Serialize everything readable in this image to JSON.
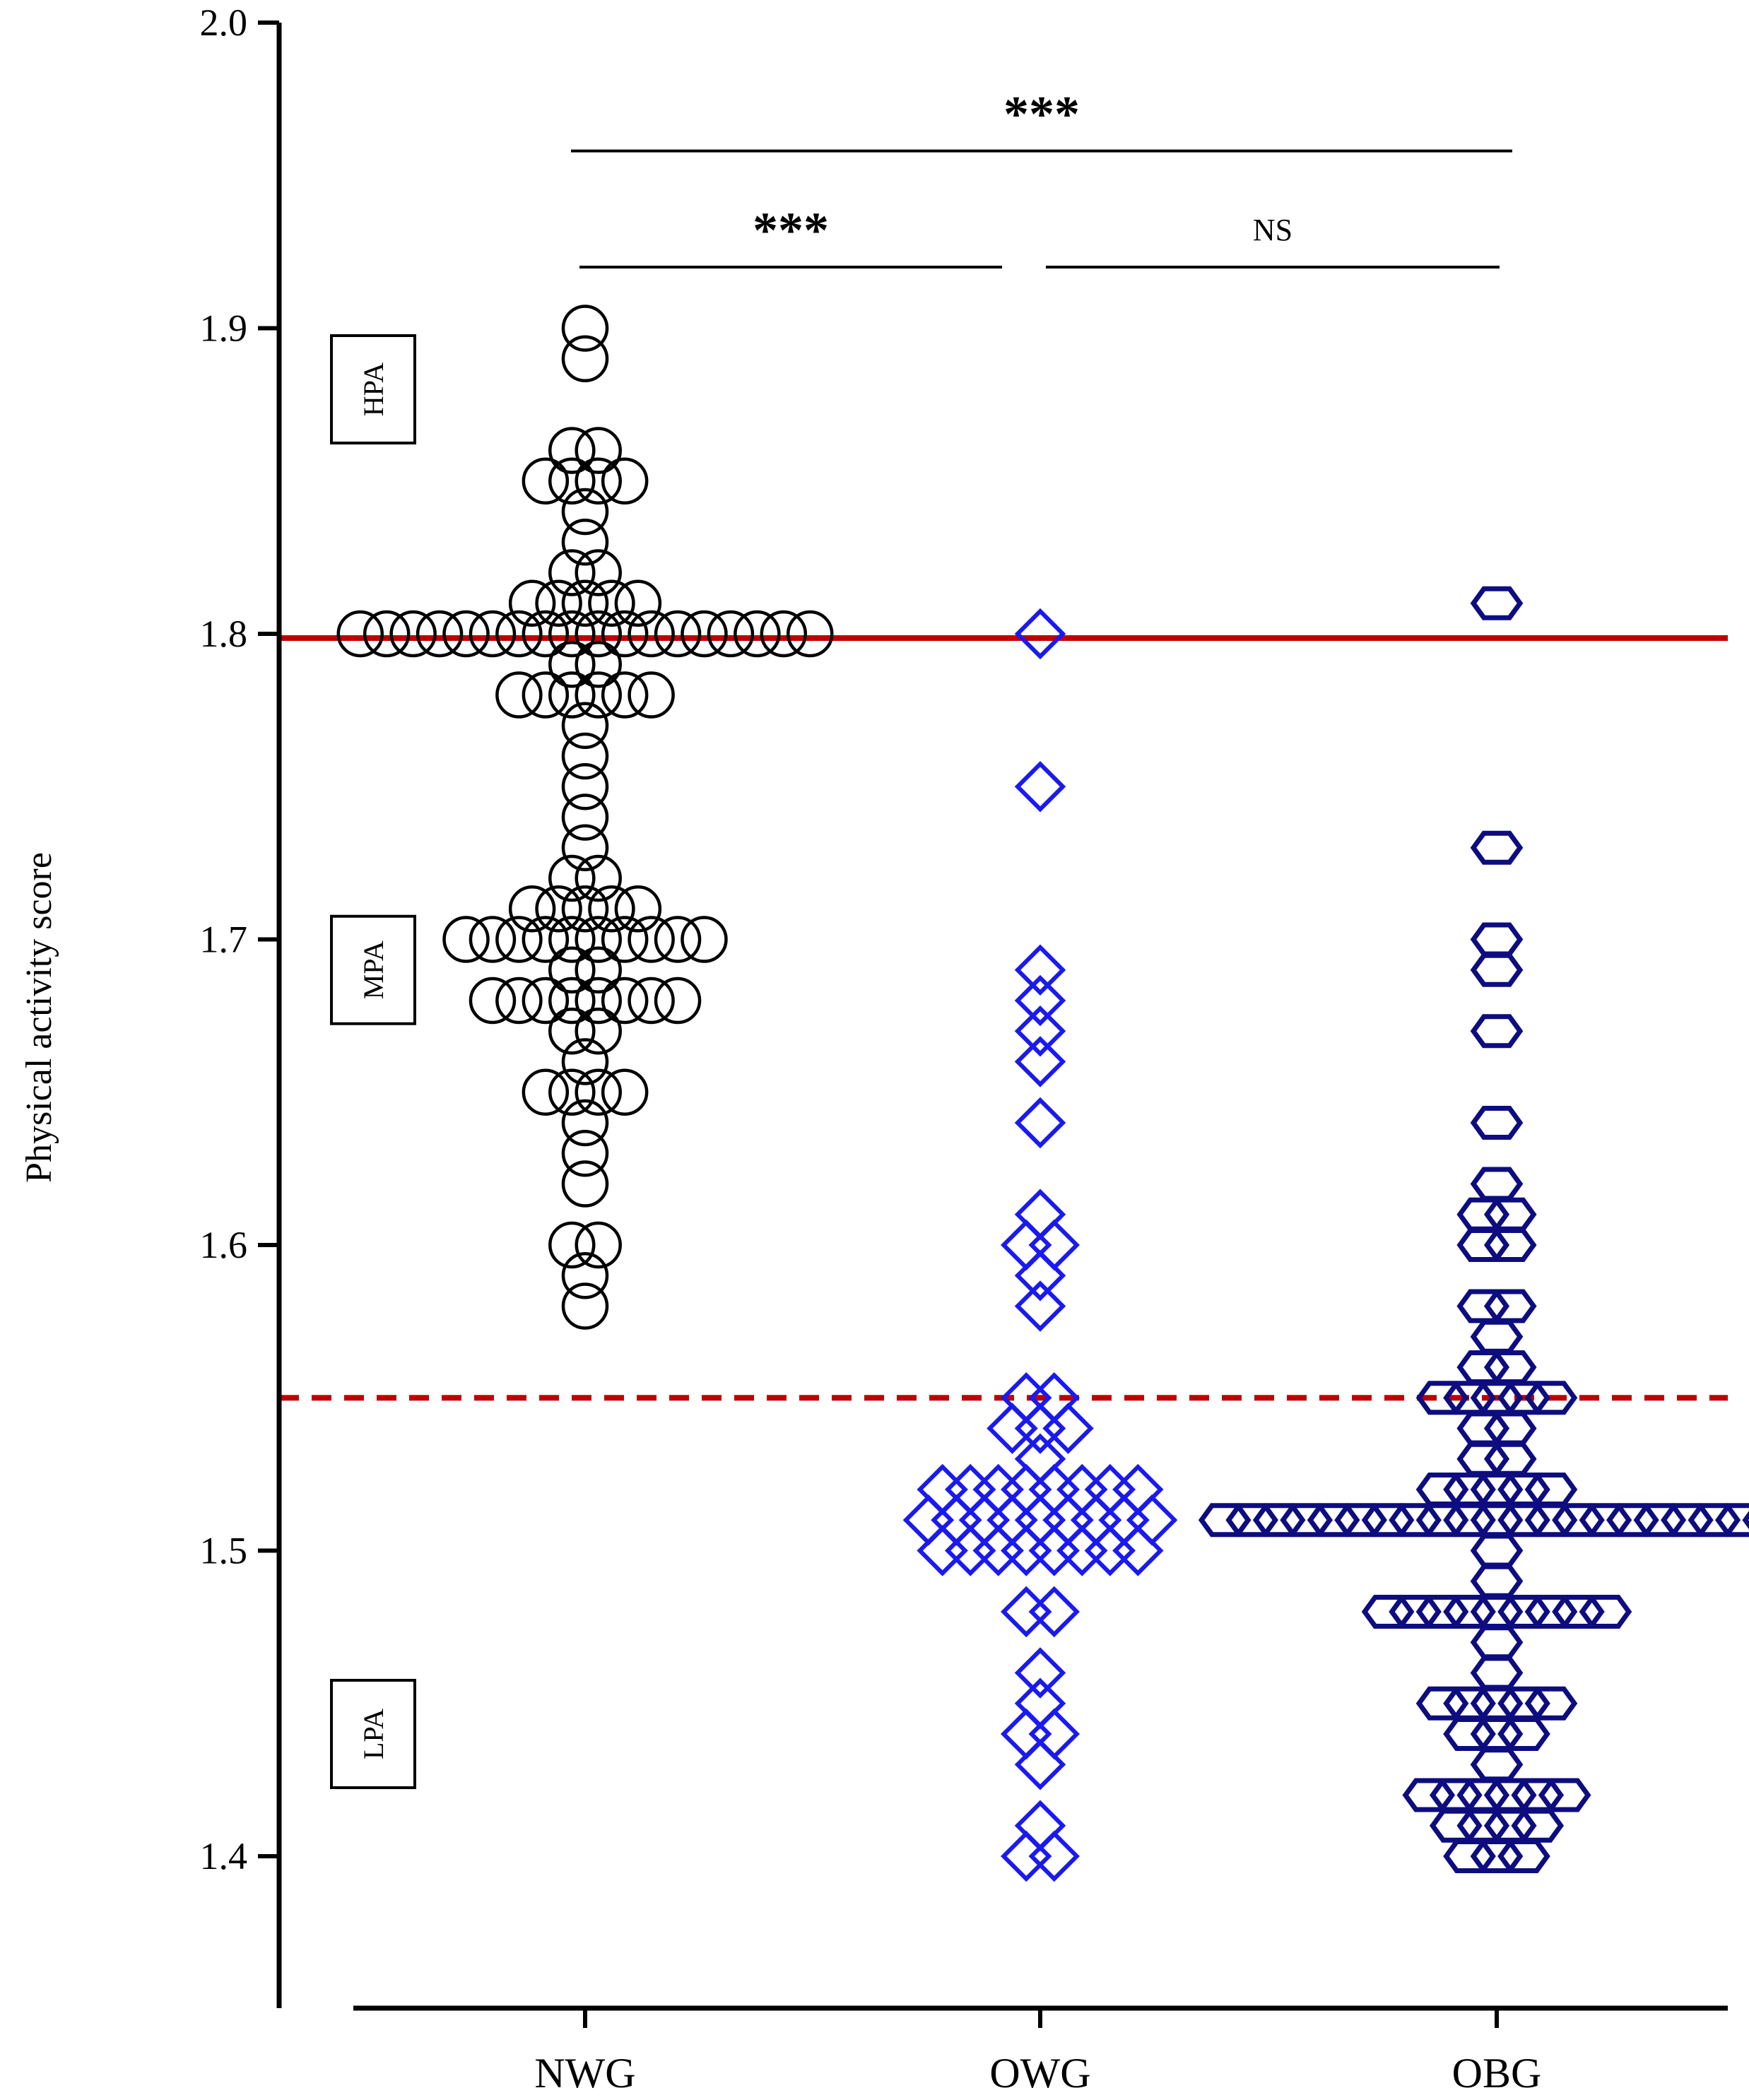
{
  "chart_data": {
    "type": "scatter",
    "title": "",
    "xlabel": "",
    "ylabel": "Physical activity score",
    "ylim": [
      1.35,
      2.0
    ],
    "yticks": [
      "1.4",
      "1.5",
      "1.6",
      "1.7",
      "1.8",
      "1.9",
      "2.0"
    ],
    "ytick_values": [
      1.4,
      1.5,
      1.6,
      1.7,
      1.8,
      1.9,
      2.0
    ],
    "categories": [
      "NWG",
      "OWG",
      "OBG"
    ],
    "grid": false,
    "reference_lines": [
      {
        "value": 1.8,
        "style": "solid",
        "color": "#c00000"
      },
      {
        "value": 1.55,
        "style": "dashed",
        "color": "#c00000"
      }
    ],
    "zone_labels": [
      {
        "label": "HPA",
        "level": 1.88
      },
      {
        "label": "MPA",
        "level": 1.69
      },
      {
        "label": "LPA",
        "level": 1.44
      }
    ],
    "significance": [
      {
        "from": "NWG",
        "to": "OBG",
        "label": "***",
        "level": 1.958
      },
      {
        "from": "NWG",
        "to": "OWG",
        "label": "***",
        "level": 1.92
      },
      {
        "from": "OWG",
        "to": "OBG",
        "label": "NS",
        "level": 1.92
      }
    ],
    "series": [
      {
        "name": "NWG",
        "marker": "circle",
        "color": "#000000",
        "values": [
          1.9,
          1.89,
          1.86,
          1.86,
          1.85,
          1.85,
          1.85,
          1.85,
          1.84,
          1.83,
          1.82,
          1.82,
          1.81,
          1.81,
          1.81,
          1.81,
          1.81,
          1.8,
          1.8,
          1.8,
          1.8,
          1.8,
          1.8,
          1.8,
          1.8,
          1.8,
          1.8,
          1.8,
          1.8,
          1.8,
          1.8,
          1.8,
          1.8,
          1.8,
          1.8,
          1.79,
          1.79,
          1.78,
          1.78,
          1.78,
          1.78,
          1.78,
          1.78,
          1.77,
          1.76,
          1.75,
          1.74,
          1.73,
          1.72,
          1.72,
          1.71,
          1.71,
          1.71,
          1.71,
          1.71,
          1.7,
          1.7,
          1.7,
          1.7,
          1.7,
          1.7,
          1.7,
          1.7,
          1.7,
          1.7,
          1.69,
          1.69,
          1.68,
          1.68,
          1.68,
          1.68,
          1.68,
          1.68,
          1.68,
          1.68,
          1.67,
          1.67,
          1.66,
          1.65,
          1.65,
          1.65,
          1.65,
          1.64,
          1.63,
          1.62,
          1.6,
          1.6,
          1.59,
          1.58
        ]
      },
      {
        "name": "OWG",
        "marker": "diamond",
        "color": "#1a1aee",
        "values": [
          1.8,
          1.75,
          1.69,
          1.68,
          1.67,
          1.66,
          1.64,
          1.61,
          1.6,
          1.6,
          1.59,
          1.58,
          1.55,
          1.55,
          1.54,
          1.54,
          1.54,
          1.53,
          1.52,
          1.52,
          1.52,
          1.52,
          1.52,
          1.52,
          1.52,
          1.52,
          1.51,
          1.51,
          1.51,
          1.51,
          1.51,
          1.51,
          1.51,
          1.51,
          1.51,
          1.5,
          1.5,
          1.5,
          1.5,
          1.5,
          1.5,
          1.5,
          1.5,
          1.48,
          1.48,
          1.46,
          1.45,
          1.44,
          1.44,
          1.43,
          1.41,
          1.4,
          1.4
        ]
      },
      {
        "name": "OBG",
        "marker": "hexagon",
        "color": "#0d0d80",
        "values": [
          1.81,
          1.73,
          1.7,
          1.69,
          1.67,
          1.64,
          1.62,
          1.61,
          1.61,
          1.6,
          1.6,
          1.58,
          1.58,
          1.57,
          1.56,
          1.56,
          1.55,
          1.55,
          1.55,
          1.55,
          1.55,
          1.54,
          1.54,
          1.53,
          1.53,
          1.52,
          1.52,
          1.52,
          1.52,
          1.52,
          1.51,
          1.51,
          1.51,
          1.51,
          1.51,
          1.51,
          1.51,
          1.51,
          1.51,
          1.51,
          1.51,
          1.51,
          1.51,
          1.51,
          1.51,
          1.51,
          1.51,
          1.51,
          1.51,
          1.51,
          1.51,
          1.5,
          1.49,
          1.48,
          1.48,
          1.48,
          1.48,
          1.48,
          1.48,
          1.48,
          1.48,
          1.48,
          1.47,
          1.46,
          1.45,
          1.45,
          1.45,
          1.45,
          1.45,
          1.44,
          1.44,
          1.44,
          1.43,
          1.42,
          1.42,
          1.42,
          1.42,
          1.42,
          1.42,
          1.41,
          1.41,
          1.41,
          1.41,
          1.4,
          1.4,
          1.4
        ]
      }
    ]
  }
}
